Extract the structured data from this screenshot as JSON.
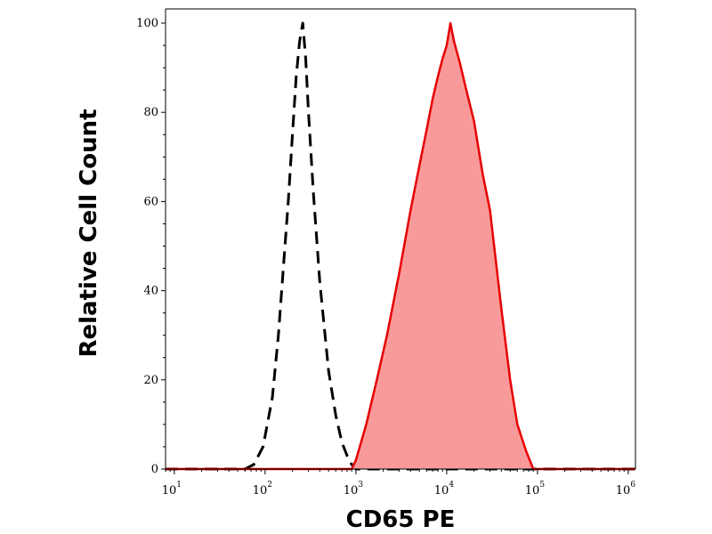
{
  "chart_data": {
    "type": "area",
    "title": "",
    "xlabel": "CD65 PE",
    "ylabel": "Relative Cell Count",
    "xscale": "log",
    "xlim": [
      8,
      1200000
    ],
    "ylim": [
      0,
      100
    ],
    "grid": false,
    "x_tick_labels": [
      {
        "base": "10",
        "exp": "1"
      },
      {
        "base": "10",
        "exp": "2"
      },
      {
        "base": "10",
        "exp": "3"
      },
      {
        "base": "10",
        "exp": "4"
      },
      {
        "base": "10",
        "exp": "5"
      },
      {
        "base": "10",
        "exp": "6"
      }
    ],
    "y_tick_labels": [
      "0",
      "20",
      "40",
      "60",
      "80",
      "100"
    ],
    "series": [
      {
        "style": "dashed",
        "fill": "none",
        "color": "#000000",
        "x": [
          8,
          60,
          75,
          95,
          120,
          140,
          160,
          180,
          200,
          220,
          240,
          260,
          280,
          300,
          340,
          400,
          500,
          600,
          700,
          800,
          900,
          1000,
          1200000
        ],
        "y": [
          0,
          0,
          1,
          5,
          16,
          30,
          46,
          60,
          75,
          88,
          96,
          100,
          92,
          80,
          62,
          42,
          22,
          12,
          6,
          3,
          1,
          0,
          0
        ]
      },
      {
        "style": "solid",
        "fill": "#f99a9a",
        "color": "#e60000",
        "x": [
          8,
          900,
          1000,
          1300,
          1700,
          2200,
          3000,
          4000,
          5000,
          6000,
          7000,
          8000,
          9000,
          10000,
          11000,
          12000,
          14000,
          16000,
          20000,
          25000,
          30000,
          40000,
          50000,
          60000,
          75000,
          90000,
          1200000
        ],
        "y": [
          0,
          0,
          2,
          10,
          20,
          30,
          44,
          58,
          68,
          76,
          83,
          88,
          92,
          95,
          100,
          96,
          91,
          86,
          78,
          66,
          58,
          36,
          20,
          10,
          4,
          0,
          0
        ]
      }
    ]
  }
}
